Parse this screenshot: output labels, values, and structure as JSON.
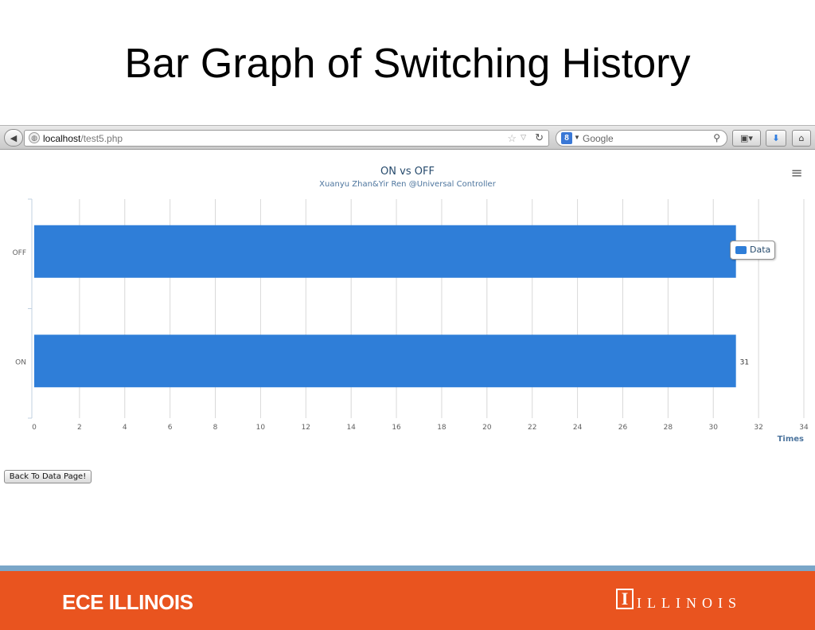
{
  "slide": {
    "title": "Bar Graph of Switching History"
  },
  "browser": {
    "url_host": "localhost",
    "url_path": "/test5.php",
    "search_placeholder": "Google",
    "search_engine_icon": "google-icon"
  },
  "page": {
    "back_button_label": "Back To Data Page!",
    "menu_icon": "hamburger-icon"
  },
  "chart_data": {
    "type": "bar",
    "orientation": "horizontal",
    "title": "ON vs OFF",
    "subtitle": "Xuanyu Zhan&Yir Ren @Universal Controller",
    "categories": [
      "OFF",
      "ON"
    ],
    "series": [
      {
        "name": "Data",
        "values": [
          31,
          31
        ],
        "color": "#2f7ed8"
      }
    ],
    "data_labels": {
      "ON": "31"
    },
    "xlabel": "",
    "ylabel": "Times",
    "value_axis": {
      "min": 0,
      "max": 34,
      "ticks": [
        "0",
        "2",
        "4",
        "6",
        "8",
        "10",
        "12",
        "14",
        "16",
        "18",
        "20",
        "22",
        "24",
        "26",
        "28",
        "30",
        "32",
        "34"
      ]
    },
    "grid": true,
    "legend": {
      "position": "right",
      "label": "Data"
    }
  },
  "footer": {
    "left_text": "ECE ILLINOIS",
    "logo_letter": "I",
    "right_text": "ILLINOIS",
    "color": "#e9541f",
    "stripe_color": "#7aa6c8"
  }
}
